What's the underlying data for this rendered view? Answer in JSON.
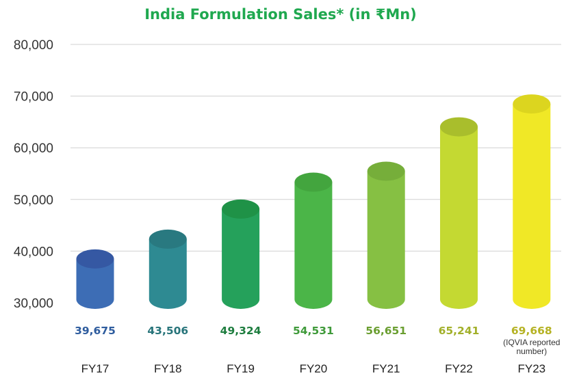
{
  "chart_data": {
    "type": "bar",
    "title": "India Formulation Sales* (in ₹Mn)",
    "xlabel": "",
    "ylabel": "",
    "ylim": [
      30000,
      80000
    ],
    "yticks": [
      30000,
      40000,
      50000,
      60000,
      70000,
      80000
    ],
    "ytick_labels": [
      "30,000",
      "40,000",
      "50,000",
      "60,000",
      "70,000",
      "80,000"
    ],
    "grid": true,
    "legend": "none",
    "categories": [
      "FY17",
      "FY18",
      "FY19",
      "FY20",
      "FY21",
      "FY22",
      "FY23"
    ],
    "values": [
      39675,
      43506,
      49324,
      54531,
      56651,
      65241,
      69668
    ],
    "value_labels": [
      "39,675",
      "43,506",
      "49,324",
      "54,531",
      "56,651",
      "65,241",
      "69,668"
    ],
    "annotations": [
      {
        "category": "FY23",
        "text_lines": [
          "(IQVIA reported",
          "number)"
        ]
      }
    ],
    "colors": {
      "title": "#1fa84f",
      "bars": [
        "#3d6db5",
        "#2e8a92",
        "#25a15b",
        "#4bb548",
        "#86c043",
        "#c4d932",
        "#f0e826"
      ],
      "bar_tops": [
        "#3558a3",
        "#297980",
        "#1f9247",
        "#43a53e",
        "#76ae3a",
        "#a9be2c",
        "#dcd51f"
      ],
      "value_labels": [
        "#2e5c9e",
        "#27747a",
        "#1e7d3f",
        "#3f9a3a",
        "#6a9e30",
        "#a2b02a",
        "#b5b224"
      ]
    }
  }
}
